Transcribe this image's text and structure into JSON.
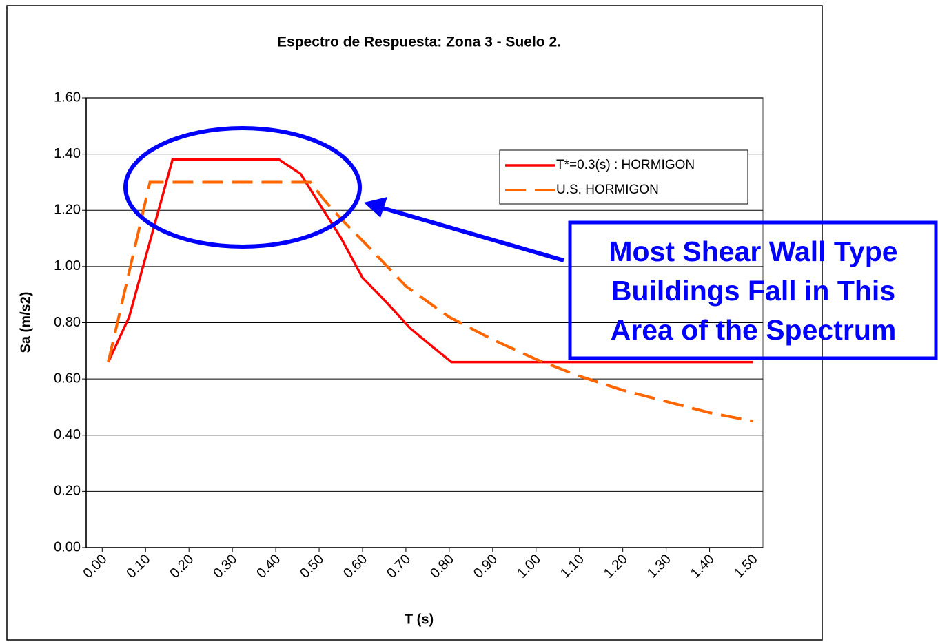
{
  "chart_data": {
    "type": "line",
    "title": "Espectro de Respuesta: Zona 3 - Suelo 2.",
    "x_label": "T (s)",
    "y_label": "Sa (m/s2)",
    "xlim": [
      -0.037,
      1.523
    ],
    "ylim": [
      0,
      1.6
    ],
    "xticks": [
      {
        "value": 0,
        "label": "0.00"
      },
      {
        "value": 0.1,
        "label": "0.10"
      },
      {
        "value": 0.2,
        "label": "0.20"
      },
      {
        "value": 0.3,
        "label": "0.30"
      },
      {
        "value": 0.4,
        "label": "0.40"
      },
      {
        "value": 0.5,
        "label": "0.50"
      },
      {
        "value": 0.6,
        "label": "0.60"
      },
      {
        "value": 0.7,
        "label": "0.70"
      },
      {
        "value": 0.8,
        "label": "0.80"
      },
      {
        "value": 0.9,
        "label": "0.90"
      },
      {
        "value": 1,
        "label": "1.00"
      },
      {
        "value": 1.1,
        "label": "1.10"
      },
      {
        "value": 1.2,
        "label": "1.20"
      },
      {
        "value": 1.3,
        "label": "1.30"
      },
      {
        "value": 1.4,
        "label": "1.40"
      },
      {
        "value": 1.5,
        "label": "1.50"
      }
    ],
    "yticks": [
      {
        "value": 0,
        "label": "0.00"
      },
      {
        "value": 0.2,
        "label": "0.20"
      },
      {
        "value": 0.4,
        "label": "0.40"
      },
      {
        "value": 0.6,
        "label": "0.60"
      },
      {
        "value": 0.8,
        "label": "0.80"
      },
      {
        "value": 1,
        "label": "1.00"
      },
      {
        "value": 1.2,
        "label": "1.20"
      },
      {
        "value": 1.4,
        "label": "1.40"
      },
      {
        "value": 1.6,
        "label": "1.60"
      }
    ],
    "grid": true,
    "legend": "upper right",
    "series": [
      {
        "name": "T*=0.3(s) : HORMIGON",
        "color": "#ff0000",
        "dashed": false,
        "x": [
          0.014,
          0.062,
          0.162,
          0.408,
          0.457,
          0.551,
          0.6,
          0.657,
          0.71,
          0.757,
          0.805,
          1.5
        ],
        "values": [
          0.66,
          0.82,
          1.38,
          1.38,
          1.33,
          1.1,
          0.96,
          0.87,
          0.78,
          0.72,
          0.66,
          0.66
        ]
      },
      {
        "name": "U.S. HORMIGON",
        "color": "#ff6600",
        "dashed": true,
        "x": [
          0.014,
          0.11,
          0.48,
          0.51,
          0.55,
          0.614,
          0.7,
          0.8,
          0.9,
          1.0,
          1.1,
          1.2,
          1.3,
          1.4,
          1.5
        ],
        "values": [
          0.66,
          1.3,
          1.3,
          1.24,
          1.17,
          1.07,
          0.93,
          0.82,
          0.74,
          0.67,
          0.61,
          0.56,
          0.52,
          0.48,
          0.45
        ]
      }
    ],
    "annotation": [
      "Most Shear Wall Type",
      "Buildings Fall in This",
      "Area of the Spectrum"
    ]
  }
}
